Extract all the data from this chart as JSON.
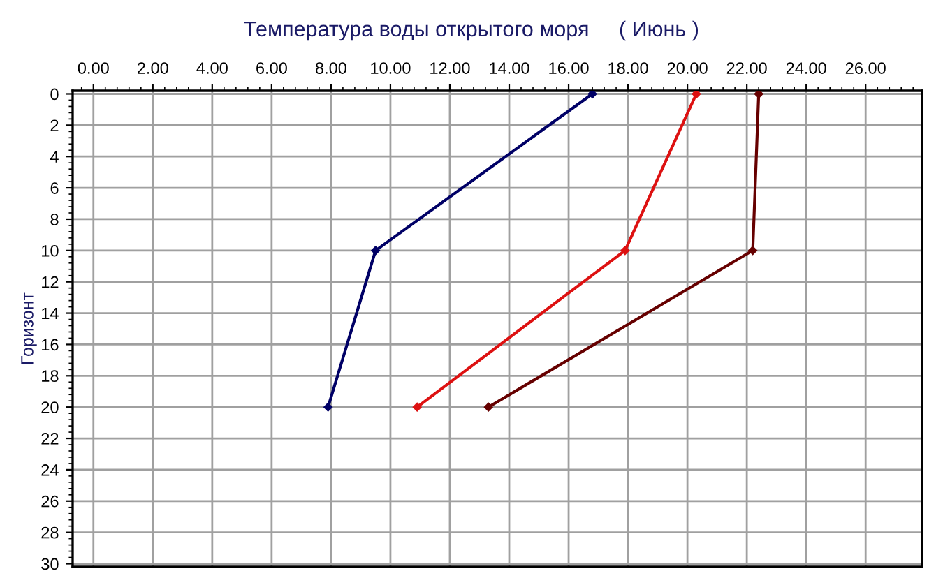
{
  "chart_data": {
    "type": "line",
    "title": "Температура воды открытого моря     ( Июнь )",
    "ylabel": "Горизонт",
    "series": [
      {
        "color": "#000066",
        "x": [
          16.8,
          9.5,
          7.9
        ],
        "values": [
          0,
          10,
          20
        ]
      },
      {
        "color": "#dd1111",
        "x": [
          20.3,
          17.9,
          10.9
        ],
        "values": [
          0,
          10,
          20
        ]
      },
      {
        "color": "#660000",
        "x": [
          22.4,
          22.2,
          13.3
        ],
        "values": [
          0,
          10,
          20
        ]
      }
    ],
    "xlim": [
      -0.7,
      27.9
    ],
    "ylim": [
      30.2,
      -0.2
    ],
    "xticks": [
      {
        "value": 0,
        "label": "0.00"
      },
      {
        "value": 2,
        "label": "2.00"
      },
      {
        "value": 4,
        "label": "4.00"
      },
      {
        "value": 6,
        "label": "6.00"
      },
      {
        "value": 8,
        "label": "8.00"
      },
      {
        "value": 10,
        "label": "10.00"
      },
      {
        "value": 12,
        "label": "12.00"
      },
      {
        "value": 14,
        "label": "14.00"
      },
      {
        "value": 16,
        "label": "16.00"
      },
      {
        "value": 18,
        "label": "18.00"
      },
      {
        "value": 20,
        "label": "20.00"
      },
      {
        "value": 22,
        "label": "22.00"
      },
      {
        "value": 24,
        "label": "24.00"
      },
      {
        "value": 26,
        "label": "26.00"
      }
    ],
    "yticks": [
      0,
      2,
      4,
      6,
      8,
      10,
      12,
      14,
      16,
      18,
      20,
      22,
      24,
      26,
      28,
      30
    ],
    "grid": true,
    "marker": "diamond",
    "line_style": "solid",
    "legend": false
  }
}
